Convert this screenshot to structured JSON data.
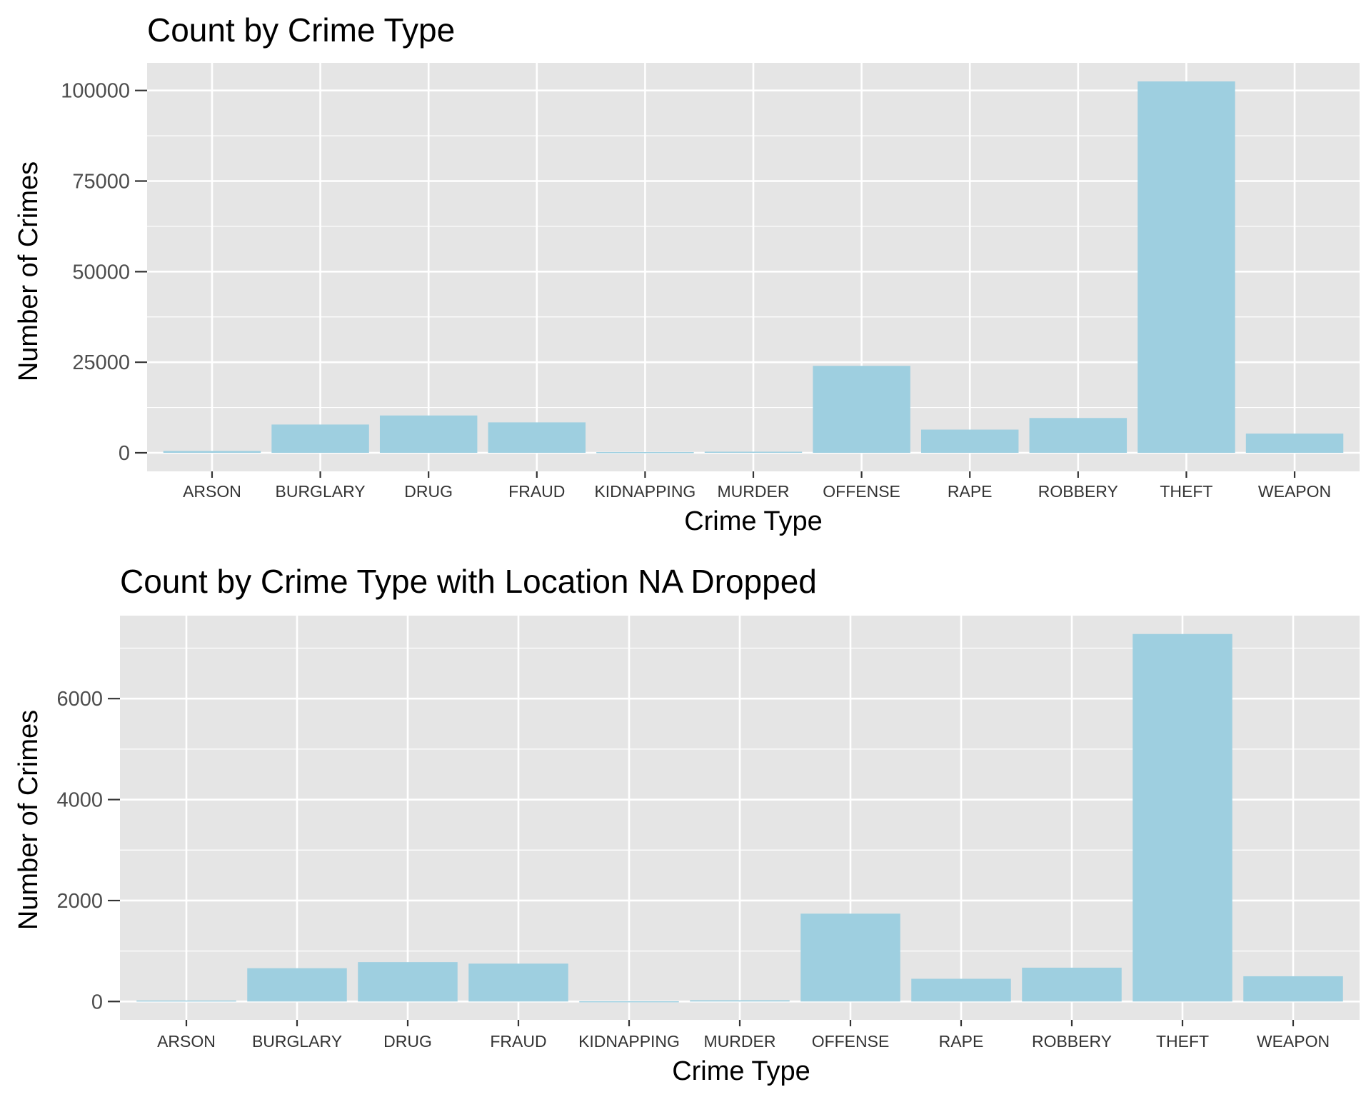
{
  "chart_data": [
    {
      "type": "bar",
      "title": "Count by Crime Type",
      "xlabel": "Crime Type",
      "ylabel": "Number of Crimes",
      "categories": [
        "ARSON",
        "BURGLARY",
        "DRUG",
        "FRAUD",
        "KIDNAPPING",
        "MURDER",
        "OFFENSE",
        "RAPE",
        "ROBBERY",
        "THEFT",
        "WEAPON"
      ],
      "values": [
        500,
        7800,
        10300,
        8400,
        200,
        300,
        24000,
        6400,
        9600,
        102500,
        5300
      ],
      "ylim": [
        -5125,
        107625
      ],
      "yticks": [
        0,
        25000,
        50000,
        75000,
        100000
      ],
      "ytick_labels": [
        "0",
        "25000",
        "50000",
        "75000",
        "100000"
      ],
      "grid": true,
      "legend": "none",
      "colors": {
        "bar": "#9ecfe0",
        "panel": "#e5e5e5",
        "grid": "#ffffff"
      }
    },
    {
      "type": "bar",
      "title": "Count by Crime Type with Location NA Dropped",
      "xlabel": "Crime Type",
      "ylabel": "Number of Crimes",
      "categories": [
        "ARSON",
        "BURGLARY",
        "DRUG",
        "FRAUD",
        "KIDNAPPING",
        "MURDER",
        "OFFENSE",
        "RAPE",
        "ROBBERY",
        "THEFT",
        "WEAPON"
      ],
      "values": [
        20,
        660,
        780,
        750,
        5,
        25,
        1740,
        450,
        670,
        7280,
        500
      ],
      "ylim": [
        -364,
        7644
      ],
      "yticks": [
        0,
        2000,
        4000,
        6000
      ],
      "ytick_labels": [
        "0",
        "2000",
        "4000",
        "6000"
      ],
      "grid": true,
      "legend": "none",
      "colors": {
        "bar": "#9ecfe0",
        "panel": "#e5e5e5",
        "grid": "#ffffff"
      }
    }
  ]
}
